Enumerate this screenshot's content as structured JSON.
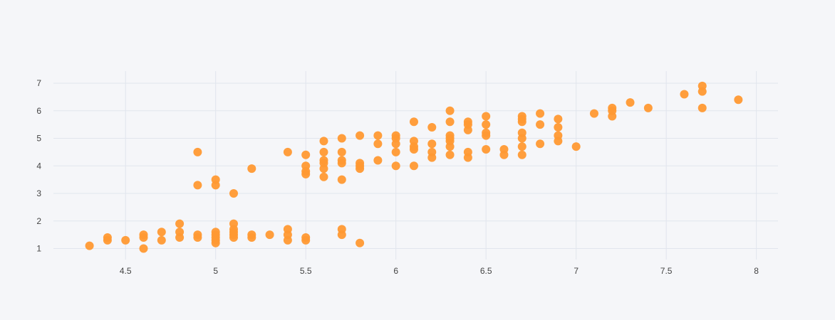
{
  "colors": {
    "background": "#f5f6f9",
    "grid": "#e1e5ed",
    "marker": "#ff9933",
    "tick_text": "#444444"
  },
  "chart_data": {
    "type": "scatter",
    "title": "",
    "xlabel": "",
    "ylabel": "",
    "grid": true,
    "legend": "none",
    "xlim": [
      4.1,
      8.12
    ],
    "ylim": [
      0.6,
      7.44
    ],
    "xticks": [
      4.5,
      5,
      5.5,
      6,
      6.5,
      7,
      7.5,
      8
    ],
    "xtick_labels": [
      "4.5",
      "5",
      "5.5",
      "6",
      "6.5",
      "7",
      "7.5",
      "8"
    ],
    "yticks": [
      1,
      2,
      3,
      4,
      5,
      6,
      7
    ],
    "ytick_labels": [
      "1",
      "2",
      "3",
      "4",
      "5",
      "6",
      "7"
    ],
    "series": [
      {
        "marker_color": "#ff9933",
        "points": [
          [
            4.3,
            1.1
          ],
          [
            4.4,
            1.3
          ],
          [
            4.4,
            1.4
          ],
          [
            4.5,
            1.3
          ],
          [
            4.6,
            1.0
          ],
          [
            4.6,
            1.4
          ],
          [
            4.6,
            1.5
          ],
          [
            4.7,
            1.3
          ],
          [
            4.7,
            1.6
          ],
          [
            4.8,
            1.4
          ],
          [
            4.8,
            1.6
          ],
          [
            4.8,
            1.9
          ],
          [
            4.9,
            1.4
          ],
          [
            4.9,
            1.5
          ],
          [
            5.0,
            1.2
          ],
          [
            5.0,
            1.3
          ],
          [
            5.0,
            1.4
          ],
          [
            5.0,
            1.5
          ],
          [
            5.0,
            1.6
          ],
          [
            5.1,
            1.4
          ],
          [
            5.1,
            1.5
          ],
          [
            5.1,
            1.6
          ],
          [
            5.1,
            1.7
          ],
          [
            5.1,
            1.9
          ],
          [
            5.2,
            1.4
          ],
          [
            5.2,
            1.5
          ],
          [
            5.3,
            1.5
          ],
          [
            5.4,
            1.3
          ],
          [
            5.4,
            1.5
          ],
          [
            5.4,
            1.7
          ],
          [
            5.5,
            1.3
          ],
          [
            5.5,
            1.4
          ],
          [
            5.7,
            1.5
          ],
          [
            5.7,
            1.7
          ],
          [
            5.8,
            1.2
          ],
          [
            4.9,
            3.3
          ],
          [
            4.9,
            4.5
          ],
          [
            5.0,
            3.3
          ],
          [
            5.0,
            3.5
          ],
          [
            5.1,
            3.0
          ],
          [
            5.2,
            3.9
          ],
          [
            5.4,
            4.5
          ],
          [
            5.5,
            3.7
          ],
          [
            5.5,
            3.8
          ],
          [
            5.5,
            4.0
          ],
          [
            5.5,
            4.4
          ],
          [
            5.6,
            3.6
          ],
          [
            5.6,
            3.9
          ],
          [
            5.6,
            4.1
          ],
          [
            5.6,
            4.2
          ],
          [
            5.6,
            4.5
          ],
          [
            5.6,
            4.9
          ],
          [
            5.7,
            3.5
          ],
          [
            5.7,
            4.1
          ],
          [
            5.7,
            4.2
          ],
          [
            5.7,
            4.5
          ],
          [
            5.7,
            5.0
          ],
          [
            5.8,
            3.9
          ],
          [
            5.8,
            4.0
          ],
          [
            5.8,
            4.1
          ],
          [
            5.8,
            5.1
          ],
          [
            5.9,
            4.2
          ],
          [
            5.9,
            4.8
          ],
          [
            5.9,
            5.1
          ],
          [
            6.0,
            4.0
          ],
          [
            6.0,
            4.5
          ],
          [
            6.0,
            4.8
          ],
          [
            6.0,
            5.0
          ],
          [
            6.0,
            5.1
          ],
          [
            6.1,
            4.0
          ],
          [
            6.1,
            4.6
          ],
          [
            6.1,
            4.7
          ],
          [
            6.1,
            4.9
          ],
          [
            6.1,
            5.6
          ],
          [
            6.2,
            4.3
          ],
          [
            6.2,
            4.5
          ],
          [
            6.2,
            4.8
          ],
          [
            6.2,
            5.4
          ],
          [
            6.3,
            4.4
          ],
          [
            6.3,
            4.7
          ],
          [
            6.3,
            4.9
          ],
          [
            6.3,
            5.0
          ],
          [
            6.3,
            5.1
          ],
          [
            6.3,
            5.6
          ],
          [
            6.3,
            6.0
          ],
          [
            6.4,
            4.3
          ],
          [
            6.4,
            4.5
          ],
          [
            6.4,
            5.3
          ],
          [
            6.4,
            5.5
          ],
          [
            6.4,
            5.6
          ],
          [
            6.5,
            4.6
          ],
          [
            6.5,
            5.1
          ],
          [
            6.5,
            5.2
          ],
          [
            6.5,
            5.5
          ],
          [
            6.5,
            5.8
          ],
          [
            6.6,
            4.4
          ],
          [
            6.6,
            4.6
          ],
          [
            6.7,
            4.4
          ],
          [
            6.7,
            4.7
          ],
          [
            6.7,
            5.0
          ],
          [
            6.7,
            5.2
          ],
          [
            6.7,
            5.6
          ],
          [
            6.7,
            5.7
          ],
          [
            6.7,
            5.8
          ],
          [
            6.8,
            4.8
          ],
          [
            6.8,
            5.5
          ],
          [
            6.8,
            5.9
          ],
          [
            6.9,
            4.9
          ],
          [
            6.9,
            5.1
          ],
          [
            6.9,
            5.4
          ],
          [
            6.9,
            5.7
          ],
          [
            7.0,
            4.7
          ],
          [
            7.1,
            5.9
          ],
          [
            7.2,
            5.8
          ],
          [
            7.2,
            6.0
          ],
          [
            7.2,
            6.1
          ],
          [
            7.3,
            6.3
          ],
          [
            7.4,
            6.1
          ],
          [
            7.6,
            6.6
          ],
          [
            7.7,
            6.1
          ],
          [
            7.7,
            6.7
          ],
          [
            7.7,
            6.9
          ],
          [
            7.9,
            6.4
          ]
        ]
      }
    ]
  }
}
